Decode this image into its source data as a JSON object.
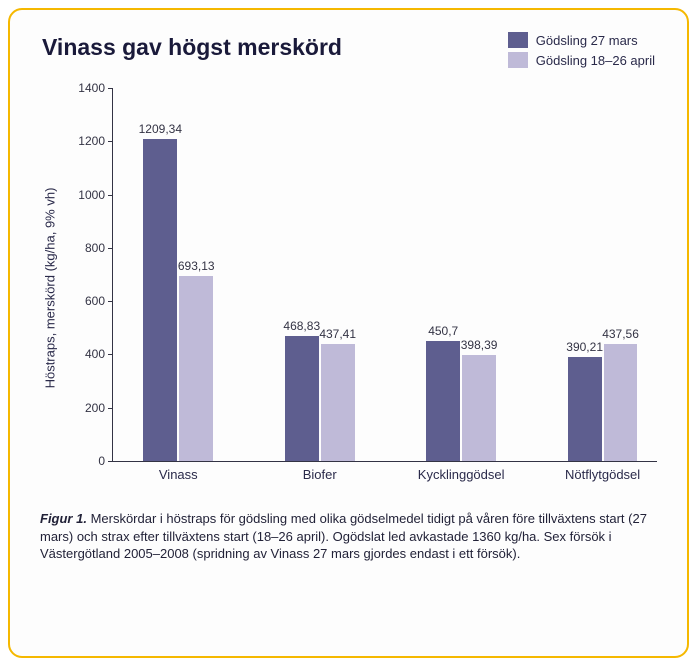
{
  "title": "Vinass gav högst merskörd",
  "legend": [
    {
      "label": "Gödsling 27 mars",
      "color": "#5e5e8f"
    },
    {
      "label": "Gödsling 18–26 april",
      "color": "#bfbad8"
    }
  ],
  "chart": {
    "type": "bar",
    "y_label": "Höstraps, merskörd (kg/ha, 9% vh)",
    "y_min": 0,
    "y_max": 1400,
    "y_step": 200,
    "categories": [
      "Vinass",
      "Biofer",
      "Kycklinggödsel",
      "Nötflytgödsel"
    ],
    "series": [
      {
        "color": "#5e5e8f",
        "values": [
          1209.34,
          468.83,
          450.7,
          390.21
        ]
      },
      {
        "color": "#bfbad8",
        "values": [
          693.13,
          437.41,
          398.39,
          437.56
        ]
      }
    ],
    "value_labels": [
      [
        "1209,34",
        "468,83",
        "450,7",
        "390,21"
      ],
      [
        "693,13",
        "437,41",
        "398,39",
        "437,56"
      ]
    ],
    "bar_width_pct": 6.2,
    "group_positions_pct": [
      12,
      38,
      64,
      90
    ],
    "axis_color": "#333344",
    "background_color": "#fdfdfd",
    "label_fontsize_pt": 12
  },
  "caption_lead": "Figur 1.",
  "caption_body": " Merskördar i höstraps för gödsling med olika gödselmedel tidigt på våren före tillväxtens start (27 mars) och strax efter tillväxtens start (18–26 april). Ogödslat led avkastade 1360 kg/ha. Sex försök i Västergötland 2005–2008 (spridning av Vinass 27 mars gjordes endast i ett försök).",
  "border_color": "#f5b800"
}
